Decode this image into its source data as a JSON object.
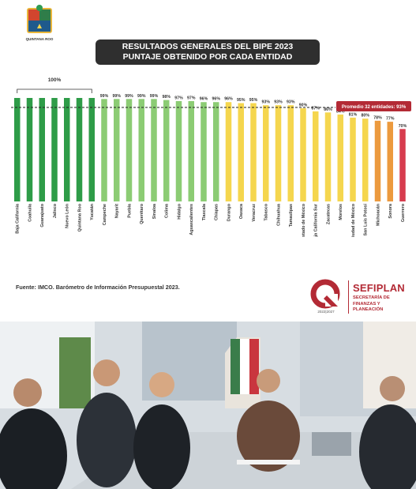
{
  "header": {
    "logo_text": "QUINTANA ROO",
    "title_line1": "RESULTADOS GENERALES DEL BIPE 2023",
    "title_line2": "PUNTAJE OBTENIDO POR CADA ENTIDAD"
  },
  "chart_data": {
    "type": "bar",
    "categories": [
      "Baja California",
      "Coahuila",
      "Guanajuato",
      "Jalisco",
      "Nuevo León",
      "Quintana Roo",
      "Yucatán",
      "Campeche",
      "Nayarit",
      "Puebla",
      "Querétaro",
      "Sinaloa",
      "Colima",
      "Hidalgo",
      "Aguascalientes",
      "Tlaxcala",
      "Chiapas",
      "Durango",
      "Oaxaca",
      "Veracruz",
      "Tabasco",
      "Chihuahua",
      "Tamaulipas",
      "Estado de México",
      "Baja California Sur",
      "Zacatecas",
      "Morelos",
      "Ciudad de México",
      "San Luis Potosí",
      "Michoacán",
      "Sonora",
      "Guerrero"
    ],
    "values": [
      100,
      100,
      100,
      100,
      100,
      100,
      100,
      99,
      99,
      99,
      99,
      99,
      98,
      97,
      97,
      96,
      96,
      96,
      95,
      95,
      93,
      93,
      93,
      90,
      87,
      86,
      84,
      81,
      80,
      78,
      77,
      70
    ],
    "value_labels": [
      "",
      "",
      "",
      "",
      "",
      "",
      "",
      "99%",
      "99%",
      "99%",
      "99%",
      "99%",
      "98%",
      "97%",
      "97%",
      "96%",
      "96%",
      "96%",
      "95%",
      "95%",
      "93%",
      "93%",
      "93%",
      "90%",
      "87%",
      "86%",
      "84%",
      "81%",
      "80%",
      "78%",
      "77%",
      "70%"
    ],
    "group_label": "100%",
    "average_label": "Promedio 32 entidades: 93%",
    "average_value": 93,
    "bar_colors": [
      "#2e9c48",
      "#2e9c48",
      "#2e9c48",
      "#2e9c48",
      "#2e9c48",
      "#2e9c48",
      "#2e9c48",
      "#8ccc74",
      "#8ccc74",
      "#8ccc74",
      "#8ccc74",
      "#8ccc74",
      "#8ccc74",
      "#8ccc74",
      "#8ccc74",
      "#8ccc74",
      "#8ccc74",
      "#f5d64e",
      "#f5d64e",
      "#f5d64e",
      "#f5d64e",
      "#f5d64e",
      "#f5d64e",
      "#f5d64e",
      "#f5d64e",
      "#f5d64e",
      "#f5d64e",
      "#f5d64e",
      "#f5d64e",
      "#ec9a3e",
      "#ec9a3e",
      "#d73c4e"
    ],
    "accent_color": "#b32a35",
    "ylim": [
      0,
      100
    ],
    "grid": false
  },
  "footer": {
    "source": "Fuente: IMCO. Barómetro de Información Presupuestal 2023.",
    "sefiplan_name": "SEFIPLAN",
    "sefiplan_subtitle": "SECRETARÍA DE FINANZAS Y PLANEACIÓN",
    "sefiplan_years": "2022|2027"
  }
}
